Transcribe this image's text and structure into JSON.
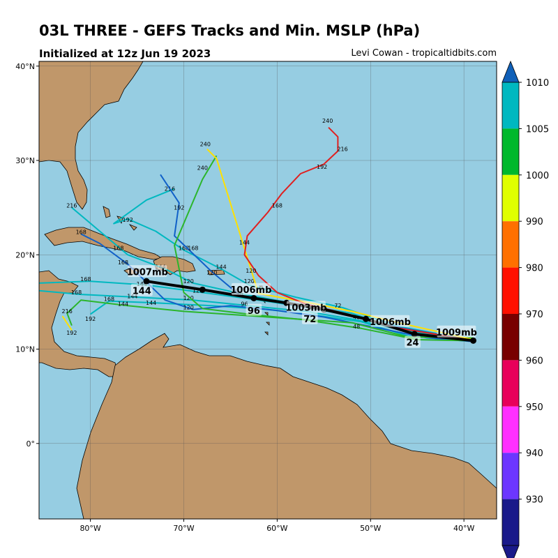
{
  "header": {
    "title": "03L THREE - GEFS Tracks and Min. MSLP (hPa)",
    "subtitle": "Initialized at 12z Jun 19 2023",
    "credit": "Levi Cowan - tropicaltidbits.com"
  },
  "map": {
    "lon_range": [
      -85.5,
      -36.5
    ],
    "lat_range": [
      -8,
      40.5
    ],
    "lon_ticks": [
      {
        "value": -80,
        "label": "80°W"
      },
      {
        "value": -70,
        "label": "70°W"
      },
      {
        "value": -60,
        "label": "60°W"
      },
      {
        "value": -50,
        "label": "50°W"
      },
      {
        "value": -40,
        "label": "40°W"
      }
    ],
    "lat_ticks": [
      {
        "value": 40,
        "label": "40°N"
      },
      {
        "value": 30,
        "label": "30°N"
      },
      {
        "value": 20,
        "label": "20°N"
      },
      {
        "value": 10,
        "label": "10°N"
      },
      {
        "value": 0,
        "label": "0°"
      }
    ],
    "ocean_color": "#96cde2",
    "land_color": "#c0976a"
  },
  "colorbar": {
    "ticks": [
      "1010",
      "1005",
      "1000",
      "990",
      "980",
      "970",
      "960",
      "950",
      "940",
      "930"
    ],
    "colors": [
      "#00b8c0",
      "#00b82c",
      "#e0ff00",
      "#ff7000",
      "#ff1000",
      "#780000",
      "#e8005a",
      "#ff30ff",
      "#6c36ff",
      "#1a1a8a"
    ],
    "top_arrow_color": "#1060b8",
    "bottom_arrow_color": "#1a1a8a"
  },
  "mean_track": {
    "points": [
      [
        -39,
        10.9
      ],
      [
        -45.3,
        11.6
      ],
      [
        -50.5,
        13.2
      ],
      [
        -55,
        14.2
      ],
      [
        -59,
        14.9
      ],
      [
        -62.5,
        15.4
      ],
      [
        -68,
        16.3
      ],
      [
        -74,
        17.2
      ]
    ],
    "pressure_labels": [
      {
        "lon": -40.8,
        "lat": 11.8,
        "text": "1009mb"
      },
      {
        "lon": -47.9,
        "lat": 12.9,
        "text": "1006mb"
      },
      {
        "lon": -56.9,
        "lat": 14.4,
        "text": "1003mb"
      },
      {
        "lon": -62.8,
        "lat": 16.3,
        "text": "1006mb"
      },
      {
        "lon": -73.9,
        "lat": 18.2,
        "text": "1007mb"
      }
    ],
    "hour_labels": [
      {
        "lon": -45.5,
        "lat": 10.7,
        "text": "24"
      },
      {
        "lon": -56.5,
        "lat": 13.2,
        "text": "72"
      },
      {
        "lon": -62.5,
        "lat": 14.1,
        "text": "96"
      },
      {
        "lon": -74.5,
        "lat": 16.2,
        "text": "144"
      }
    ]
  },
  "members": [
    {
      "color": "#00b8c0",
      "points": [
        [
          -39,
          11
        ],
        [
          -45,
          11.6
        ],
        [
          -51,
          13.3
        ],
        [
          -56,
          14.3
        ],
        [
          -62,
          15.2
        ],
        [
          -68,
          16.0
        ],
        [
          -74,
          16.8
        ],
        [
          -80,
          17.2
        ],
        [
          -85.5,
          17.0
        ]
      ],
      "labels": [
        [
          -51.5,
          13.2,
          "48"
        ],
        [
          -56.5,
          14.2,
          "72"
        ],
        [
          -62.5,
          15.2,
          "96"
        ],
        [
          -68.5,
          16.0,
          "120"
        ],
        [
          -74.5,
          16.7,
          "144"
        ],
        [
          -80.5,
          17.2,
          "168"
        ]
      ]
    },
    {
      "color": "#00b8c0",
      "points": [
        [
          -39,
          10.9
        ],
        [
          -46,
          11.9
        ],
        [
          -52,
          13.2
        ],
        [
          -57,
          14.0
        ],
        [
          -63,
          14.6
        ],
        [
          -69,
          15.2
        ],
        [
          -75,
          15.5
        ],
        [
          -81,
          15.8
        ],
        [
          -85.5,
          16.2
        ]
      ],
      "labels": [
        [
          -63.5,
          14.6,
          "96"
        ],
        [
          -69.5,
          15.2,
          "120"
        ],
        [
          -75.5,
          15.4,
          "144"
        ],
        [
          -81.5,
          15.8,
          "168"
        ]
      ]
    },
    {
      "color": "#00b8c0",
      "points": [
        [
          -39,
          11.1
        ],
        [
          -46,
          11.4
        ],
        [
          -51,
          12.9
        ],
        [
          -56,
          13.6
        ],
        [
          -61,
          14.2
        ],
        [
          -67,
          14.6
        ],
        [
          -73,
          14.9
        ],
        [
          -78,
          15.1
        ],
        [
          -80,
          13.7
        ]
      ],
      "labels": [
        [
          -73.5,
          14.7,
          "144"
        ],
        [
          -78,
          15.1,
          "168"
        ],
        [
          -80,
          13.0,
          "192"
        ]
      ]
    },
    {
      "color": "#00b8c0",
      "points": [
        [
          -39.5,
          11.2
        ],
        [
          -47,
          12.1
        ],
        [
          -52,
          13.8
        ],
        [
          -58,
          14.8
        ],
        [
          -64,
          15.9
        ],
        [
          -69,
          17.0
        ],
        [
          -72,
          18.5
        ],
        [
          -76,
          20.0
        ],
        [
          -79,
          22.5
        ],
        [
          -82,
          25
        ]
      ],
      "labels": [
        [
          -64.5,
          16.0,
          "96"
        ],
        [
          -69.5,
          17.0,
          "120"
        ],
        [
          -72.5,
          18.5,
          "144"
        ],
        [
          -77,
          20.5,
          "168"
        ],
        [
          -82,
          25,
          "216"
        ]
      ]
    },
    {
      "color": "#00b8c0",
      "points": [
        [
          -39.3,
          11.0
        ],
        [
          -47,
          12.4
        ],
        [
          -53,
          14.4
        ],
        [
          -58,
          15.5
        ],
        [
          -63,
          16.8
        ],
        [
          -66,
          18.5
        ],
        [
          -70,
          20.5
        ],
        [
          -73,
          22.5
        ],
        [
          -76,
          23.8
        ],
        [
          -77.5,
          23.3
        ],
        [
          -74,
          25.8
        ],
        [
          -71,
          27
        ]
      ],
      "labels": [
        [
          -63,
          17.0,
          "120"
        ],
        [
          -66,
          18.5,
          "144"
        ],
        [
          -70,
          20.5,
          "168"
        ],
        [
          -76,
          23.5,
          "192"
        ],
        [
          -71.5,
          26.8,
          "216"
        ]
      ]
    },
    {
      "color": "#1060c8",
      "points": [
        [
          -39,
          10.8
        ],
        [
          -44,
          11.2
        ],
        [
          -50,
          12.4
        ],
        [
          -55,
          13.4
        ],
        [
          -60,
          14.1
        ],
        [
          -65,
          14.6
        ],
        [
          -69,
          14.2
        ],
        [
          -72,
          15.2
        ],
        [
          -76,
          19
        ],
        [
          -79,
          21.2
        ],
        [
          -81,
          22.2
        ]
      ],
      "labels": [
        [
          -69.5,
          14.2,
          "120"
        ],
        [
          -76.5,
          19.0,
          "168"
        ],
        [
          -81,
          22.2,
          "168"
        ]
      ]
    },
    {
      "color": "#1060c8",
      "points": [
        [
          -39,
          10.9
        ],
        [
          -47,
          12.3
        ],
        [
          -53,
          13.8
        ],
        [
          -59,
          14.8
        ],
        [
          -64,
          15.7
        ],
        [
          -67,
          18.2
        ],
        [
          -71,
          22
        ],
        [
          -70.5,
          25.5
        ],
        [
          -72.5,
          28.5
        ]
      ],
      "labels": [
        [
          -64,
          15.7,
          "96"
        ],
        [
          -67,
          17.9,
          "120"
        ],
        [
          -69,
          20.5,
          "168"
        ],
        [
          -70.5,
          24.8,
          "192"
        ]
      ]
    },
    {
      "color": "#2bb52b",
      "points": [
        [
          -39,
          11.2
        ],
        [
          -46,
          11.3
        ],
        [
          -52,
          12.8
        ],
        [
          -58,
          13.2
        ],
        [
          -64,
          13.6
        ],
        [
          -70,
          14.0
        ],
        [
          -76,
          14.6
        ],
        [
          -81,
          15.2
        ],
        [
          -82.5,
          13.8
        ],
        [
          -82,
          12.5
        ]
      ],
      "labels": [
        [
          -76.5,
          14.6,
          "144"
        ],
        [
          -82.5,
          13.8,
          "216"
        ]
      ]
    },
    {
      "color": "#2bb52b",
      "points": [
        [
          -39.5,
          10.9
        ],
        [
          -45,
          11.0
        ],
        [
          -51,
          12.2
        ],
        [
          -57,
          13.1
        ],
        [
          -63,
          13.7
        ],
        [
          -68,
          14.3
        ],
        [
          -70,
          16.0
        ],
        [
          -71,
          21
        ],
        [
          -68,
          28
        ],
        [
          -66.5,
          30.5
        ]
      ],
      "labels": [
        [
          -51.5,
          12.2,
          "48"
        ],
        [
          -68,
          29,
          "240"
        ]
      ]
    },
    {
      "color": "#ffe000",
      "points": [
        [
          -39,
          11.0
        ],
        [
          -47,
          12.8
        ],
        [
          -52,
          14.0
        ],
        [
          -57,
          15.0
        ],
        [
          -62,
          15.9
        ],
        [
          -66.5,
          30.2
        ],
        [
          -67.5,
          31.2
        ]
      ],
      "labels": [
        [
          -53.5,
          14.4,
          "72"
        ],
        [
          -67.7,
          31.5,
          "240"
        ]
      ]
    },
    {
      "color": "#ffe000",
      "points": [
        [
          -83,
          13.5
        ],
        [
          -82,
          12
        ]
      ],
      "labels": [
        [
          -82,
          11.5,
          "192"
        ]
      ]
    },
    {
      "color": "#e02020",
      "points": [
        [
          -39.5,
          11.0
        ],
        [
          -48,
          12.4
        ],
        [
          -52,
          13.6
        ],
        [
          -57,
          14.8
        ],
        [
          -60,
          16.0
        ],
        [
          -62,
          17.8
        ],
        [
          -63.5,
          20
        ],
        [
          -63.2,
          22
        ],
        [
          -61,
          24.5
        ],
        [
          -59.5,
          26.5
        ],
        [
          -57.5,
          28.6
        ],
        [
          -55,
          29.6
        ],
        [
          -53.5,
          31
        ],
        [
          -53.5,
          32.5
        ],
        [
          -54.5,
          33.5
        ]
      ],
      "labels": [
        [
          -55.2,
          29.1,
          "192"
        ],
        [
          -53,
          31.0,
          "216"
        ],
        [
          -60,
          25.0,
          "168"
        ],
        [
          -63.5,
          21.1,
          "144"
        ],
        [
          -62.8,
          18.1,
          "120"
        ],
        [
          -54.6,
          34.0,
          "240"
        ]
      ]
    }
  ]
}
